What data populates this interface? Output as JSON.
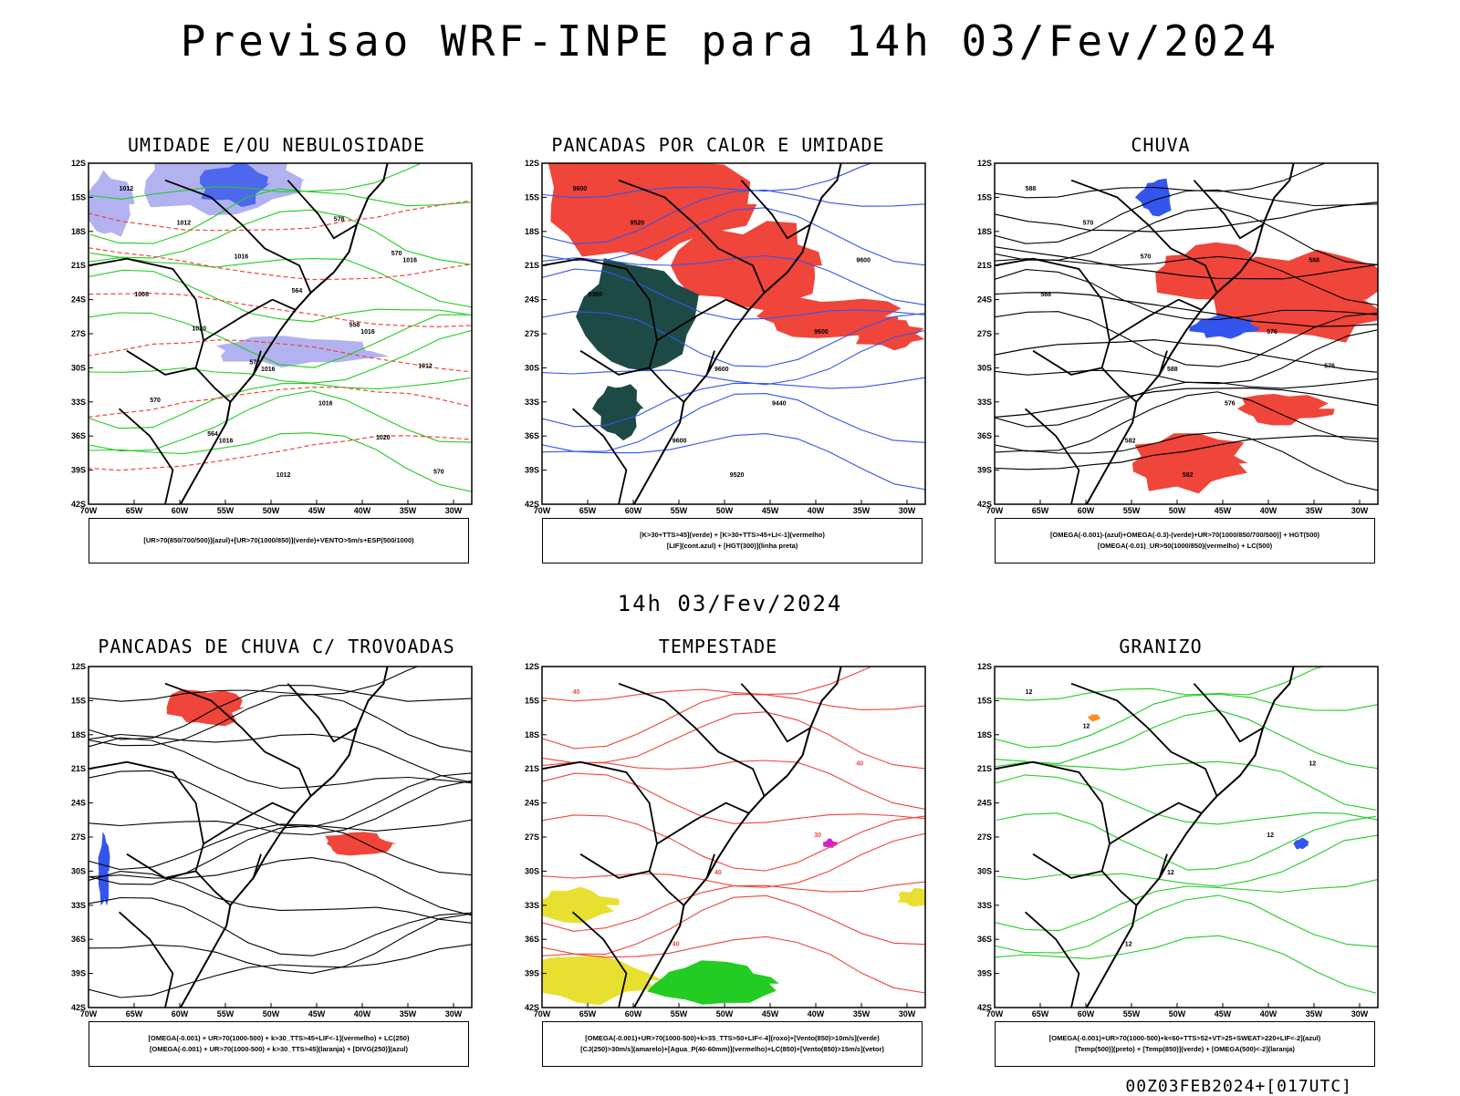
{
  "header": {
    "title": "Previsao WRF-INPE  para 14h 03/Fev/2024",
    "subtitle": "14h 03/Fev/2024",
    "footer": "00Z03FEB2024+[017UTC]"
  },
  "axes": {
    "lat_labels": [
      "12S",
      "15S",
      "18S",
      "21S",
      "24S",
      "27S",
      "30S",
      "33S",
      "36S",
      "39S",
      "42S"
    ],
    "lon_labels": [
      "70W",
      "65W",
      "60W",
      "55W",
      "50W",
      "45W",
      "40W",
      "35W",
      "30W"
    ]
  },
  "panels": [
    {
      "id": "umidade",
      "title": "UMIDADE E/OU NEBULOSIDADE",
      "legend": [
        "[UR>70(850/700/500)](azul)+[UR>70(1000/850)](verde)+VENTO>5m/s+ESP(500/1000)"
      ],
      "contour_labels": [
        "1012",
        "1016",
        "1016",
        "1016",
        "1016",
        "1012",
        "1016",
        "1008",
        "1012",
        "1012",
        "1016",
        "1020",
        "1020",
        "576",
        "570",
        "564",
        "570",
        "576",
        "570",
        "564",
        "558"
      ]
    },
    {
      "id": "pancadas",
      "title": "PANCADAS POR CALOR E UMIDADE",
      "legend": [
        "[K>30+TTS>45](verde) + [K>30+TTS>45+LI<-1](vermelho)",
        "[LIF](cont.azul) + [HGT(300)](linha preta)"
      ],
      "contour_labels": [
        "9600",
        "9600",
        "9600",
        "9600",
        "9600",
        "9520",
        "9440",
        "9360",
        "9520"
      ]
    },
    {
      "id": "chuva",
      "title": "CHUVA",
      "legend": [
        "[OMEGA(-0.001)-(azul)+OMEGA(-0.3)-(verde)+UR>70(1000/850/700/500)] + HGT(500)",
        "[OMEGA(-0.01)_UR>50(1000/850)(vermelho) + LC(500)"
      ],
      "contour_labels": [
        "588",
        "588",
        "588",
        "582",
        "576",
        "570",
        "576",
        "588",
        "582",
        "576",
        "570"
      ]
    },
    {
      "id": "trovoadas",
      "title": "PANCADAS DE CHUVA C/ TROVOADAS",
      "legend": [
        "[OMEGA(-0.001) + UR>70(1000-500) + k>30_TTS>45+LIF<-1](vermelho) + LC(250)",
        "[OMEGA(-0.001) + UR>70(1000-500) + k>30_TTS>45](laranja) + [DIVG(250)](azul)"
      ],
      "contour_labels": []
    },
    {
      "id": "tempestade",
      "title": "TEMPESTADE",
      "legend": [
        "[OMEGA(-0.001)+UR>70(1000-500)+k>35_TTS>50+LIF<-4](roxo)+[Vento(850)>10m/s](verde)",
        "[CJ(250)>30m/s](amarelo)+[Agua_P(40-60mm)](vermelho)+LC(850)+[Vento(850)>15m/s](vetor)"
      ],
      "contour_labels": [
        "40",
        "40",
        "40",
        "40",
        "30"
      ]
    },
    {
      "id": "granizo",
      "title": "GRANIZO",
      "legend": [
        "[OMEGA(-0.001)+UR>70(1000-500)+k<60+TTS>52+VT>25+SWEAT>220+LIF<-2](azul)",
        "[Temp(500)](preto) + [Temp(850)](verde) + [OMEGA(500)<-2](laranja)"
      ],
      "contour_labels": [
        "12",
        "12",
        "12",
        "12",
        "12",
        "12"
      ]
    }
  ],
  "colors": {
    "red": "#f0453a",
    "green": "#22cc22",
    "blue": "#3355ee",
    "lavender": "#aaaaee",
    "darkgreen": "#1d4a45",
    "yellow": "#e8e030",
    "orange": "#ff8c1a",
    "purple": "#cc22cc"
  }
}
